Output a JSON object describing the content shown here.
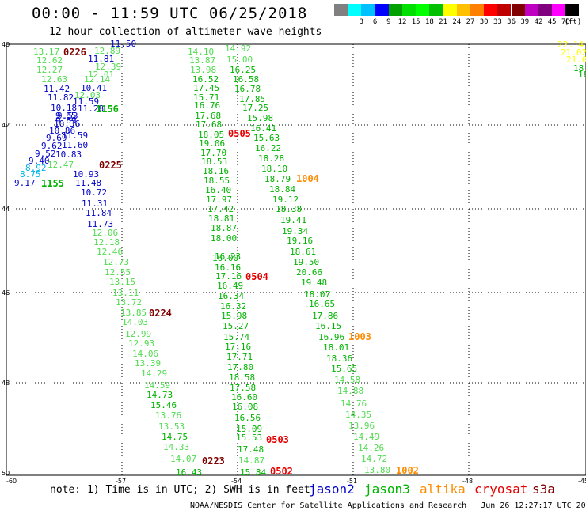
{
  "header": {
    "title": "00:00 - 11:59 UTC 06/25/2018",
    "subtitle": "12 hour collection of altimeter wave heights"
  },
  "legend": {
    "colors": [
      "#808080",
      "#00ffff",
      "#00c0ff",
      "#0000ff",
      "#00a000",
      "#00e000",
      "#00ff00",
      "#00c000",
      "#ffff00",
      "#ffc000",
      "#ff8000",
      "#ff0000",
      "#c00000",
      "#800000",
      "#c000c0",
      "#800080",
      "#ff00ff",
      "#000000"
    ],
    "labels": [
      "3",
      "6",
      "9",
      "12",
      "15",
      "18",
      "21",
      "24",
      "27",
      "30",
      "33",
      "36",
      "39",
      "42",
      "45",
      "70"
    ],
    "unit": "(ft)"
  },
  "map": {
    "x_ticks": [
      "-60",
      "-57",
      "-54",
      "-51",
      "-48",
      "-45"
    ],
    "y_ticks": [
      "40",
      "42",
      "44",
      "46",
      "48",
      "50"
    ],
    "colors": {
      "jason2": "#0000c8",
      "jason3": "#00b400",
      "altika": "#ff8c00",
      "cryosat": "#e60000",
      "s3a": "#800000",
      "cyan": "#00b4e6",
      "lightgreen": "#50dc50",
      "yellow": "#ffff00"
    },
    "track_a": [
      {
        "v": "13.17",
        "c": "lightgreen"
      },
      {
        "v": "12.62",
        "c": "lightgreen"
      },
      {
        "v": "12.27",
        "c": "lightgreen"
      },
      {
        "v": "12.63",
        "c": "lightgreen"
      },
      {
        "v": "11.42",
        "c": "jason2"
      },
      {
        "v": "11.82",
        "c": "jason2"
      },
      {
        "v": "10.18",
        "c": "jason2"
      },
      {
        "v": "9.85",
        "c": "jason2"
      },
      {
        "v": "10.36",
        "c": "jason2"
      },
      {
        "v": "10.86",
        "c": "jason2"
      },
      {
        "v": "9.69",
        "c": "jason2"
      },
      {
        "v": "9.62",
        "c": "jason2"
      },
      {
        "v": "9.52",
        "c": "jason2"
      },
      {
        "v": "9.40",
        "c": "jason2"
      },
      {
        "v": "8.92",
        "c": "cyan"
      },
      {
        "v": "8.75",
        "c": "cyan"
      },
      {
        "v": "9.17",
        "c": "jason2"
      }
    ],
    "track_b": [
      {
        "v": "11.50",
        "c": "jason2"
      },
      {
        "v": "12.89",
        "c": "lightgreen"
      },
      {
        "v": "11.81",
        "c": "jason2"
      },
      {
        "v": "12.39",
        "c": "lightgreen"
      },
      {
        "v": "12.01",
        "c": "lightgreen"
      },
      {
        "v": "12.14",
        "c": "lightgreen"
      },
      {
        "v": "10.41",
        "c": "jason2"
      },
      {
        "v": "12.03",
        "c": "lightgreen"
      },
      {
        "v": "11.59",
        "c": "jason2"
      },
      {
        "v": "11.28",
        "c": "jason2"
      },
      {
        "v": "9.53",
        "c": "jason2"
      },
      {
        "v": "9.89",
        "c": "jason2"
      },
      {
        "v": "11.59",
        "c": "jason2"
      },
      {
        "v": "11.60",
        "c": "jason2"
      },
      {
        "v": "10.83",
        "c": "jason2"
      },
      {
        "v": "12.47",
        "c": "lightgreen"
      },
      {
        "v": "10.93",
        "c": "jason2"
      },
      {
        "v": "11.48",
        "c": "jason2"
      },
      {
        "v": "10.72",
        "c": "jason2"
      },
      {
        "v": "11.31",
        "c": "jason2"
      },
      {
        "v": "11.84",
        "c": "jason2"
      },
      {
        "v": "11.73",
        "c": "jason2"
      },
      {
        "v": "12.06",
        "c": "lightgreen"
      },
      {
        "v": "12.18",
        "c": "lightgreen"
      },
      {
        "v": "12.46",
        "c": "lightgreen"
      },
      {
        "v": "12.73",
        "c": "lightgreen"
      },
      {
        "v": "12.55",
        "c": "lightgreen"
      },
      {
        "v": "13.15",
        "c": "lightgreen"
      },
      {
        "v": "13.11",
        "c": "lightgreen"
      },
      {
        "v": "13.72",
        "c": "lightgreen"
      },
      {
        "v": "13.85",
        "c": "lightgreen"
      },
      {
        "v": "14.03",
        "c": "lightgreen"
      },
      {
        "v": "12.99",
        "c": "lightgreen"
      },
      {
        "v": "12.93",
        "c": "lightgreen"
      },
      {
        "v": "14.06",
        "c": "lightgreen"
      },
      {
        "v": "13.39",
        "c": "lightgreen"
      },
      {
        "v": "14.29",
        "c": "lightgreen"
      },
      {
        "v": "14.59",
        "c": "lightgreen"
      },
      {
        "v": "14.73",
        "c": "jason3"
      },
      {
        "v": "15.46",
        "c": "jason3"
      },
      {
        "v": "13.76",
        "c": "lightgreen"
      },
      {
        "v": "13.53",
        "c": "lightgreen"
      },
      {
        "v": "14.75",
        "c": "jason3"
      },
      {
        "v": "14.33",
        "c": "lightgreen"
      },
      {
        "v": "14.07",
        "c": "lightgreen"
      },
      {
        "v": "16.43",
        "c": "jason3"
      }
    ],
    "track_c": [
      {
        "v": "14.10",
        "c": "lightgreen"
      },
      {
        "v": "13.87",
        "c": "lightgreen"
      },
      {
        "v": "13.98",
        "c": "lightgreen"
      },
      {
        "v": "16.52",
        "c": "jason3"
      },
      {
        "v": "17.45",
        "c": "jason3"
      },
      {
        "v": "15.71",
        "c": "jason3"
      },
      {
        "v": "16.76",
        "c": "jason3"
      },
      {
        "v": "17.68",
        "c": "jason3"
      },
      {
        "v": "17.68",
        "c": "jason3"
      },
      {
        "v": "18.05",
        "c": "jason3"
      },
      {
        "v": "19.06",
        "c": "jason3"
      },
      {
        "v": "17.70",
        "c": "jason3"
      },
      {
        "v": "18.53",
        "c": "jason3"
      },
      {
        "v": "18.16",
        "c": "jason3"
      },
      {
        "v": "18.55",
        "c": "jason3"
      },
      {
        "v": "16.40",
        "c": "jason3"
      },
      {
        "v": "17.97",
        "c": "jason3"
      },
      {
        "v": "17.42",
        "c": "jason3"
      },
      {
        "v": "18.81",
        "c": "jason3"
      },
      {
        "v": "18.87",
        "c": "jason3"
      },
      {
        "v": "18.00",
        "c": "jason3"
      },
      {
        "v": "16.00",
        "c": "jason3"
      },
      {
        "v": "16.23",
        "c": "jason3"
      },
      {
        "v": "16.16",
        "c": "jason3"
      },
      {
        "v": "17.16",
        "c": "jason3"
      },
      {
        "v": "16.49",
        "c": "jason3"
      },
      {
        "v": "16.34",
        "c": "jason3"
      },
      {
        "v": "16.32",
        "c": "jason3"
      },
      {
        "v": "15.98",
        "c": "jason3"
      },
      {
        "v": "15.27",
        "c": "jason3"
      },
      {
        "v": "15.74",
        "c": "jason3"
      },
      {
        "v": "17.16",
        "c": "jason3"
      },
      {
        "v": "17.71",
        "c": "jason3"
      },
      {
        "v": "17.80",
        "c": "jason3"
      },
      {
        "v": "18.58",
        "c": "jason3"
      },
      {
        "v": "17.58",
        "c": "jason3"
      },
      {
        "v": "16.60",
        "c": "jason3"
      },
      {
        "v": "16.08",
        "c": "jason3"
      },
      {
        "v": "16.56",
        "c": "jason3"
      },
      {
        "v": "15.09",
        "c": "jason3"
      },
      {
        "v": "15.53",
        "c": "jason3"
      },
      {
        "v": "17.48",
        "c": "jason3"
      },
      {
        "v": "14.87",
        "c": "lightgreen"
      },
      {
        "v": "15.84",
        "c": "jason3"
      }
    ],
    "track_d": [
      {
        "v": "14.92",
        "c": "lightgreen"
      },
      {
        "v": "15.00",
        "c": "lightgreen"
      },
      {
        "v": "16.25",
        "c": "jason3"
      },
      {
        "v": "16.58",
        "c": "jason3"
      },
      {
        "v": "16.78",
        "c": "jason3"
      },
      {
        "v": "17.85",
        "c": "jason3"
      },
      {
        "v": "17.25",
        "c": "jason3"
      },
      {
        "v": "15.98",
        "c": "jason3"
      },
      {
        "v": "16.41",
        "c": "jason3"
      },
      {
        "v": "15.63",
        "c": "jason3"
      },
      {
        "v": "16.22",
        "c": "jason3"
      },
      {
        "v": "18.28",
        "c": "jason3"
      },
      {
        "v": "18.10",
        "c": "jason3"
      },
      {
        "v": "18.79",
        "c": "jason3"
      },
      {
        "v": "18.84",
        "c": "jason3"
      },
      {
        "v": "19.12",
        "c": "jason3"
      },
      {
        "v": "18.38",
        "c": "jason3"
      },
      {
        "v": "19.41",
        "c": "jason3"
      },
      {
        "v": "19.34",
        "c": "jason3"
      },
      {
        "v": "19.16",
        "c": "jason3"
      },
      {
        "v": "18.61",
        "c": "jason3"
      },
      {
        "v": "19.50",
        "c": "jason3"
      },
      {
        "v": "20.66",
        "c": "jason3"
      },
      {
        "v": "19.48",
        "c": "jason3"
      },
      {
        "v": "18.07",
        "c": "jason3"
      },
      {
        "v": "16.65",
        "c": "jason3"
      },
      {
        "v": "17.86",
        "c": "jason3"
      },
      {
        "v": "16.15",
        "c": "jason3"
      },
      {
        "v": "16.96",
        "c": "jason3"
      },
      {
        "v": "18.01",
        "c": "jason3"
      },
      {
        "v": "18.36",
        "c": "jason3"
      },
      {
        "v": "15.65",
        "c": "jason3"
      },
      {
        "v": "14.58",
        "c": "lightgreen"
      },
      {
        "v": "14.88",
        "c": "lightgreen"
      },
      {
        "v": "14.76",
        "c": "lightgreen"
      },
      {
        "v": "14.35",
        "c": "lightgreen"
      },
      {
        "v": "13.96",
        "c": "lightgreen"
      },
      {
        "v": "14.49",
        "c": "lightgreen"
      },
      {
        "v": "14.26",
        "c": "lightgreen"
      },
      {
        "v": "14.72",
        "c": "lightgreen"
      },
      {
        "v": "13.80",
        "c": "lightgreen"
      }
    ],
    "track_e": [
      {
        "v": "22.14",
        "c": "yellow"
      },
      {
        "v": "21.02",
        "c": "yellow"
      },
      {
        "v": "21.0",
        "c": "yellow"
      },
      {
        "v": "18.",
        "c": "jason3"
      },
      {
        "v": "18",
        "c": "jason3"
      }
    ],
    "times": [
      {
        "t": "0226",
        "c": "s3a"
      },
      {
        "t": "1156",
        "c": "jason3"
      },
      {
        "t": "0225",
        "c": "s3a"
      },
      {
        "t": "1155",
        "c": "jason3"
      },
      {
        "t": "0224",
        "c": "s3a"
      },
      {
        "t": "0223",
        "c": "s3a"
      },
      {
        "t": "0505",
        "c": "cryosat"
      },
      {
        "t": "0504",
        "c": "cryosat"
      },
      {
        "t": "0503",
        "c": "cryosat"
      },
      {
        "t": "0502",
        "c": "cryosat"
      },
      {
        "t": "1004",
        "c": "altika"
      },
      {
        "t": "1003",
        "c": "altika"
      },
      {
        "t": "1002",
        "c": "altika"
      }
    ]
  },
  "footer": {
    "note": "note: 1) Time is in UTC; 2) SWH is in feet",
    "satellites": [
      {
        "name": "jason2",
        "color": "#0000c8"
      },
      {
        "name": "jason3",
        "color": "#00b400"
      },
      {
        "name": "altika",
        "color": "#ff8c00"
      },
      {
        "name": "cryosat",
        "color": "#e60000"
      },
      {
        "name": "s3a",
        "color": "#800000"
      }
    ],
    "credit": "NOAA/NESDIS Center for Satellite Applications and Research   Jun 26 12:27:17 UTC 2018"
  }
}
